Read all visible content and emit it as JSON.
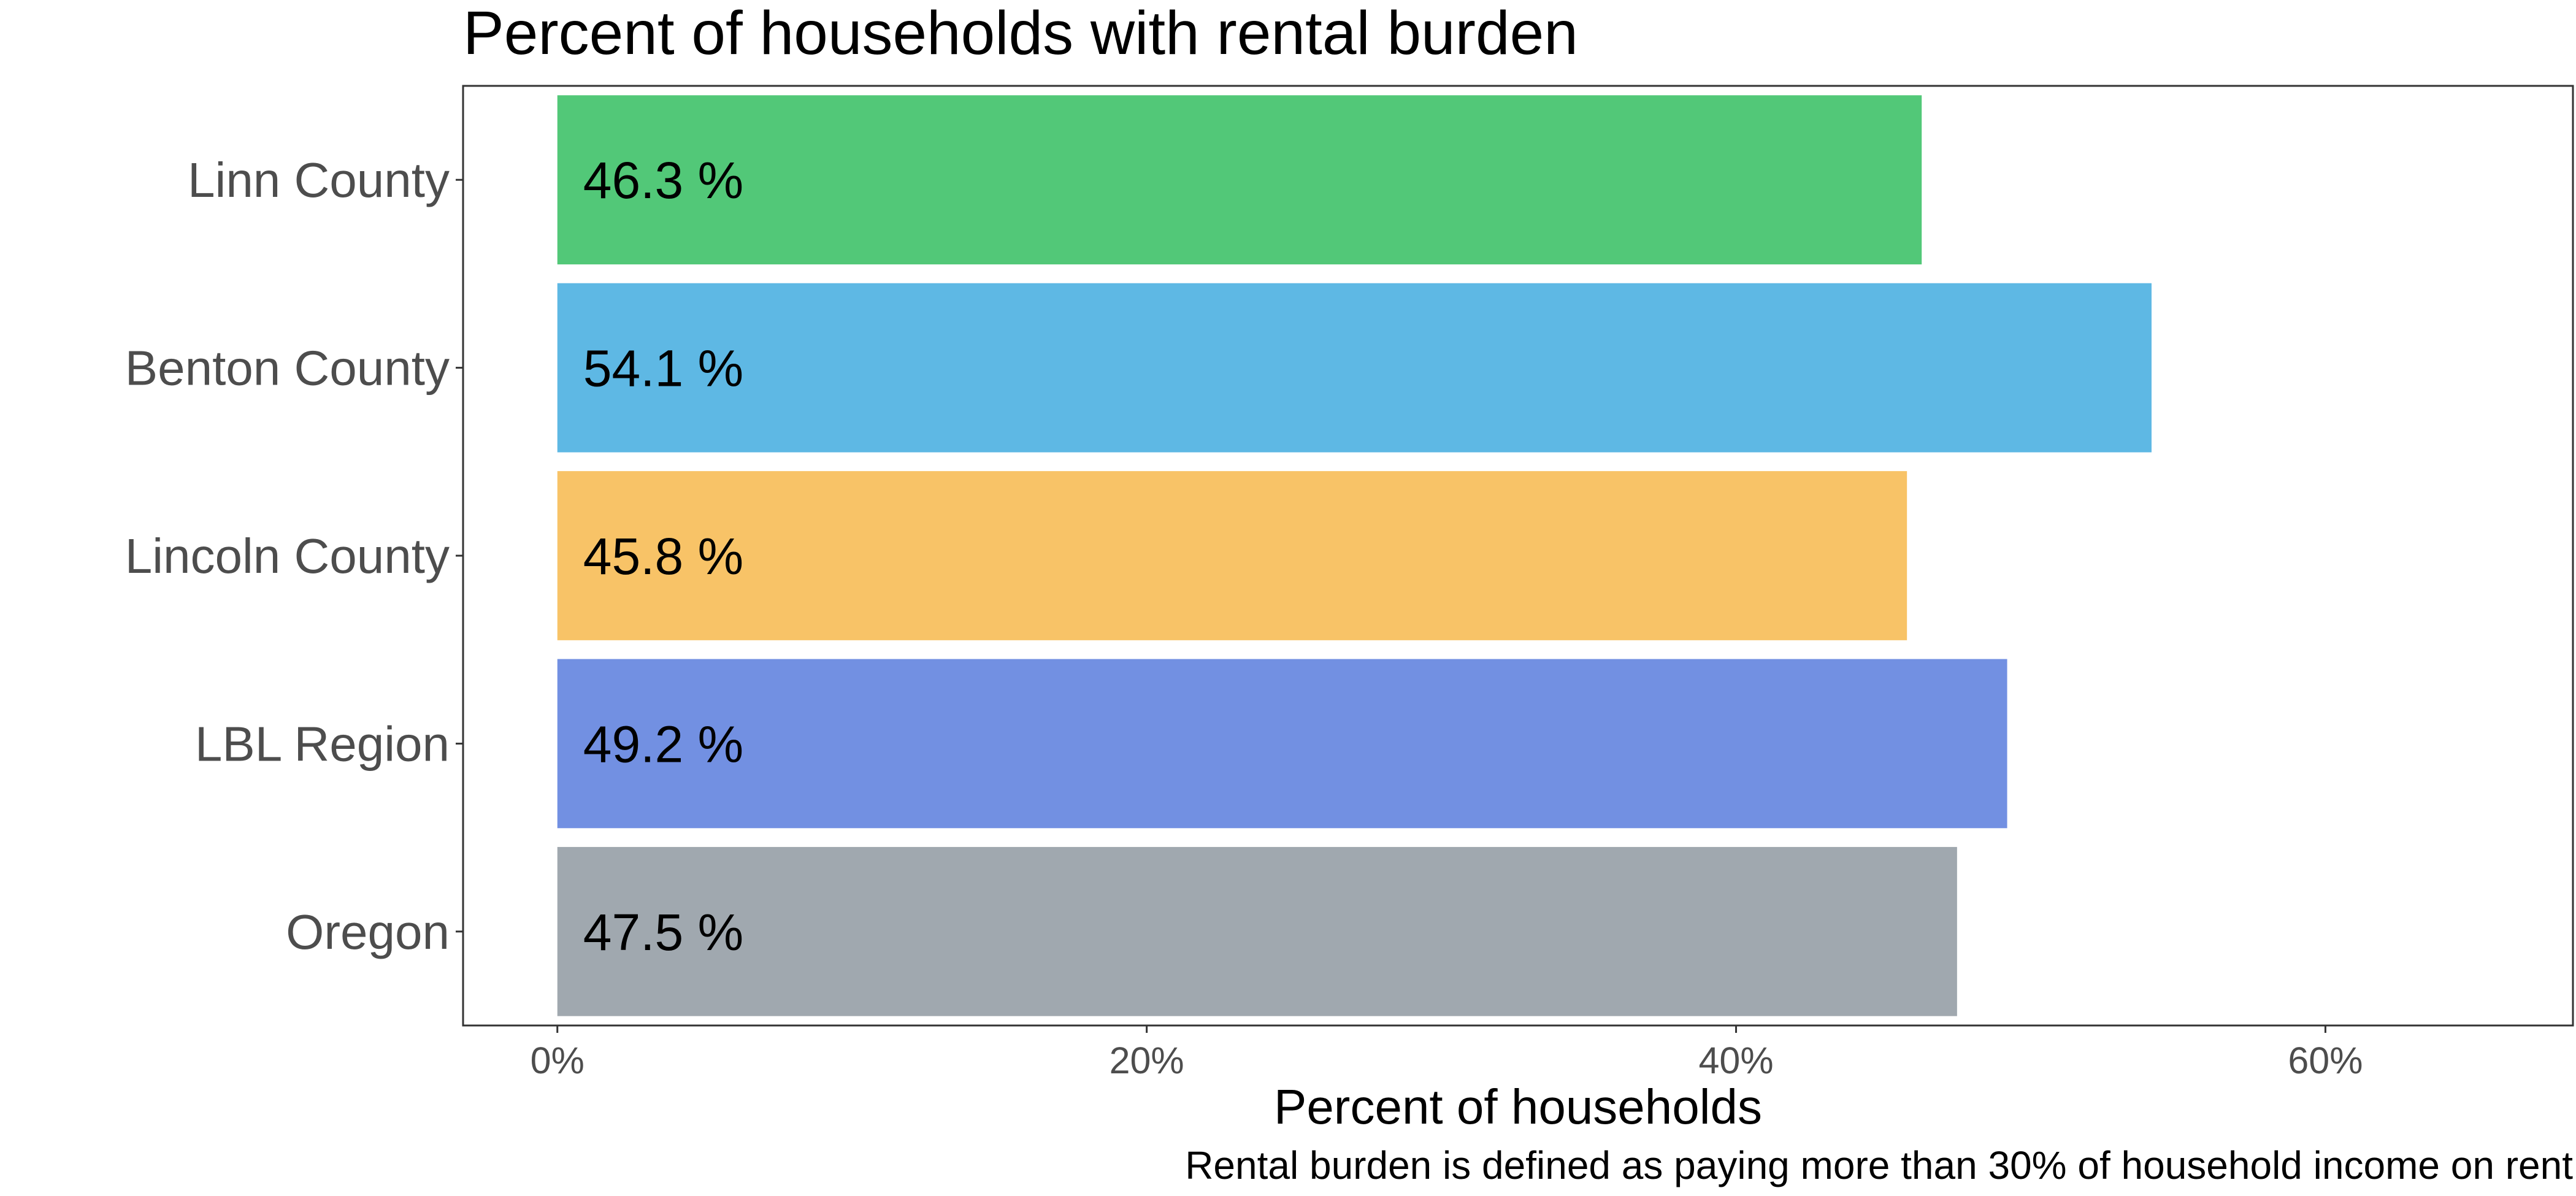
{
  "chart_data": {
    "type": "bar",
    "orientation": "horizontal",
    "title": "Percent of households with rental burden",
    "xlabel": "Percent of households",
    "ylabel": "",
    "caption": "Rental burden is defined as paying more than 30% of household income on rent",
    "categories": [
      "Linn County",
      "Benton County",
      "Lincoln County",
      "LBL Region",
      "Oregon"
    ],
    "values": [
      46.3,
      54.1,
      45.8,
      49.2,
      47.5
    ],
    "value_labels": [
      "46.3 %",
      "54.1 %",
      "45.8 %",
      "49.2 %",
      "47.5 %"
    ],
    "colors": [
      "#52c878",
      "#5eb8e4",
      "#f8c367",
      "#7290e2",
      "#a0a8af"
    ],
    "xlim": [
      -3.2,
      68.4
    ],
    "x_ticks": [
      0,
      20,
      40,
      60
    ],
    "x_tick_labels": [
      "0%",
      "20%",
      "40%",
      "60%"
    ],
    "grid": false,
    "legend": "none"
  }
}
